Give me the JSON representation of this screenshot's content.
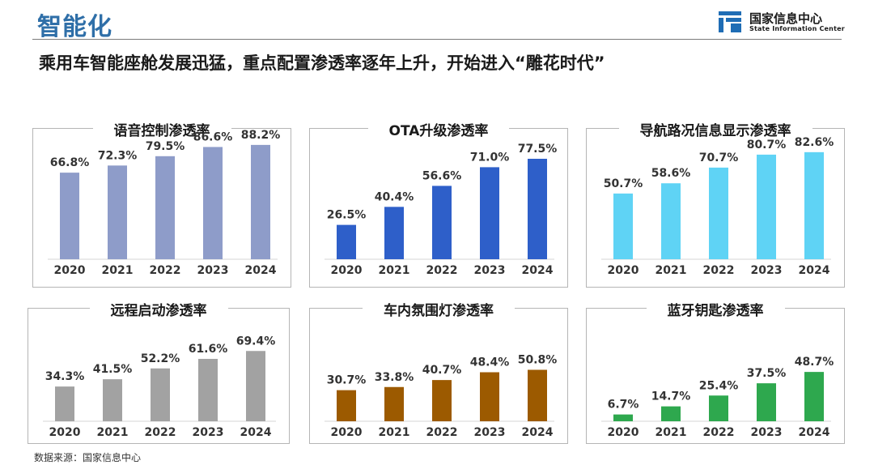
{
  "header": {
    "section_title": "智能化",
    "headline": "乘用车智能座舱发展迅猛，重点配置渗透率逐年上升，开始进入“雕花时代”"
  },
  "logo": {
    "cn": "国家信息中心",
    "en": "State Information Center",
    "color": "#1f6db5"
  },
  "footer": {
    "source": "数据来源：国家信息中心"
  },
  "chart_data": [
    {
      "type": "bar",
      "title": "语音控制渗透率",
      "categories": [
        "2020",
        "2021",
        "2022",
        "2023",
        "2024"
      ],
      "values": [
        66.8,
        72.3,
        79.5,
        86.6,
        88.2
      ],
      "labels": [
        "66.8%",
        "72.3%",
        "79.5%",
        "86.6%",
        "88.2%"
      ],
      "color": "#8e9cc9",
      "ylim": [
        0,
        100
      ]
    },
    {
      "type": "bar",
      "title": "OTA升级渗透率",
      "categories": [
        "2020",
        "2021",
        "2022",
        "2023",
        "2024"
      ],
      "values": [
        26.5,
        40.4,
        56.6,
        71.0,
        77.5
      ],
      "labels": [
        "26.5%",
        "40.4%",
        "56.6%",
        "71.0%",
        "77.5%"
      ],
      "color": "#2e5fc9",
      "ylim": [
        0,
        100
      ]
    },
    {
      "type": "bar",
      "title": "导航路况信息显示渗透率",
      "categories": [
        "2020",
        "2021",
        "2022",
        "2023",
        "2024"
      ],
      "values": [
        50.7,
        58.6,
        70.7,
        80.7,
        82.6
      ],
      "labels": [
        "50.7%",
        "58.6%",
        "70.7%",
        "80.7%",
        "82.6%"
      ],
      "color": "#5fd3f5",
      "ylim": [
        0,
        100
      ]
    },
    {
      "type": "bar",
      "title": "远程启动渗透率",
      "categories": [
        "2020",
        "2021",
        "2022",
        "2023",
        "2024"
      ],
      "values": [
        34.3,
        41.5,
        52.2,
        61.6,
        69.4
      ],
      "labels": [
        "34.3%",
        "41.5%",
        "52.2%",
        "61.6%",
        "69.4%"
      ],
      "color": "#a2a2a2",
      "ylim": [
        0,
        100
      ]
    },
    {
      "type": "bar",
      "title": "车内氛围灯渗透率",
      "categories": [
        "2020",
        "2021",
        "2022",
        "2023",
        "2024"
      ],
      "values": [
        30.7,
        33.8,
        40.7,
        48.4,
        50.8
      ],
      "labels": [
        "30.7%",
        "33.8%",
        "40.7%",
        "48.4%",
        "50.8%"
      ],
      "color": "#9c5a00",
      "ylim": [
        0,
        100
      ]
    },
    {
      "type": "bar",
      "title": "蓝牙钥匙渗透率",
      "categories": [
        "2020",
        "2021",
        "2022",
        "2023",
        "2024"
      ],
      "values": [
        6.7,
        14.7,
        25.4,
        37.5,
        48.7
      ],
      "labels": [
        "6.7%",
        "14.7%",
        "25.4%",
        "37.5%",
        "48.7%"
      ],
      "color": "#2ea84e",
      "ylim": [
        0,
        100
      ]
    }
  ]
}
